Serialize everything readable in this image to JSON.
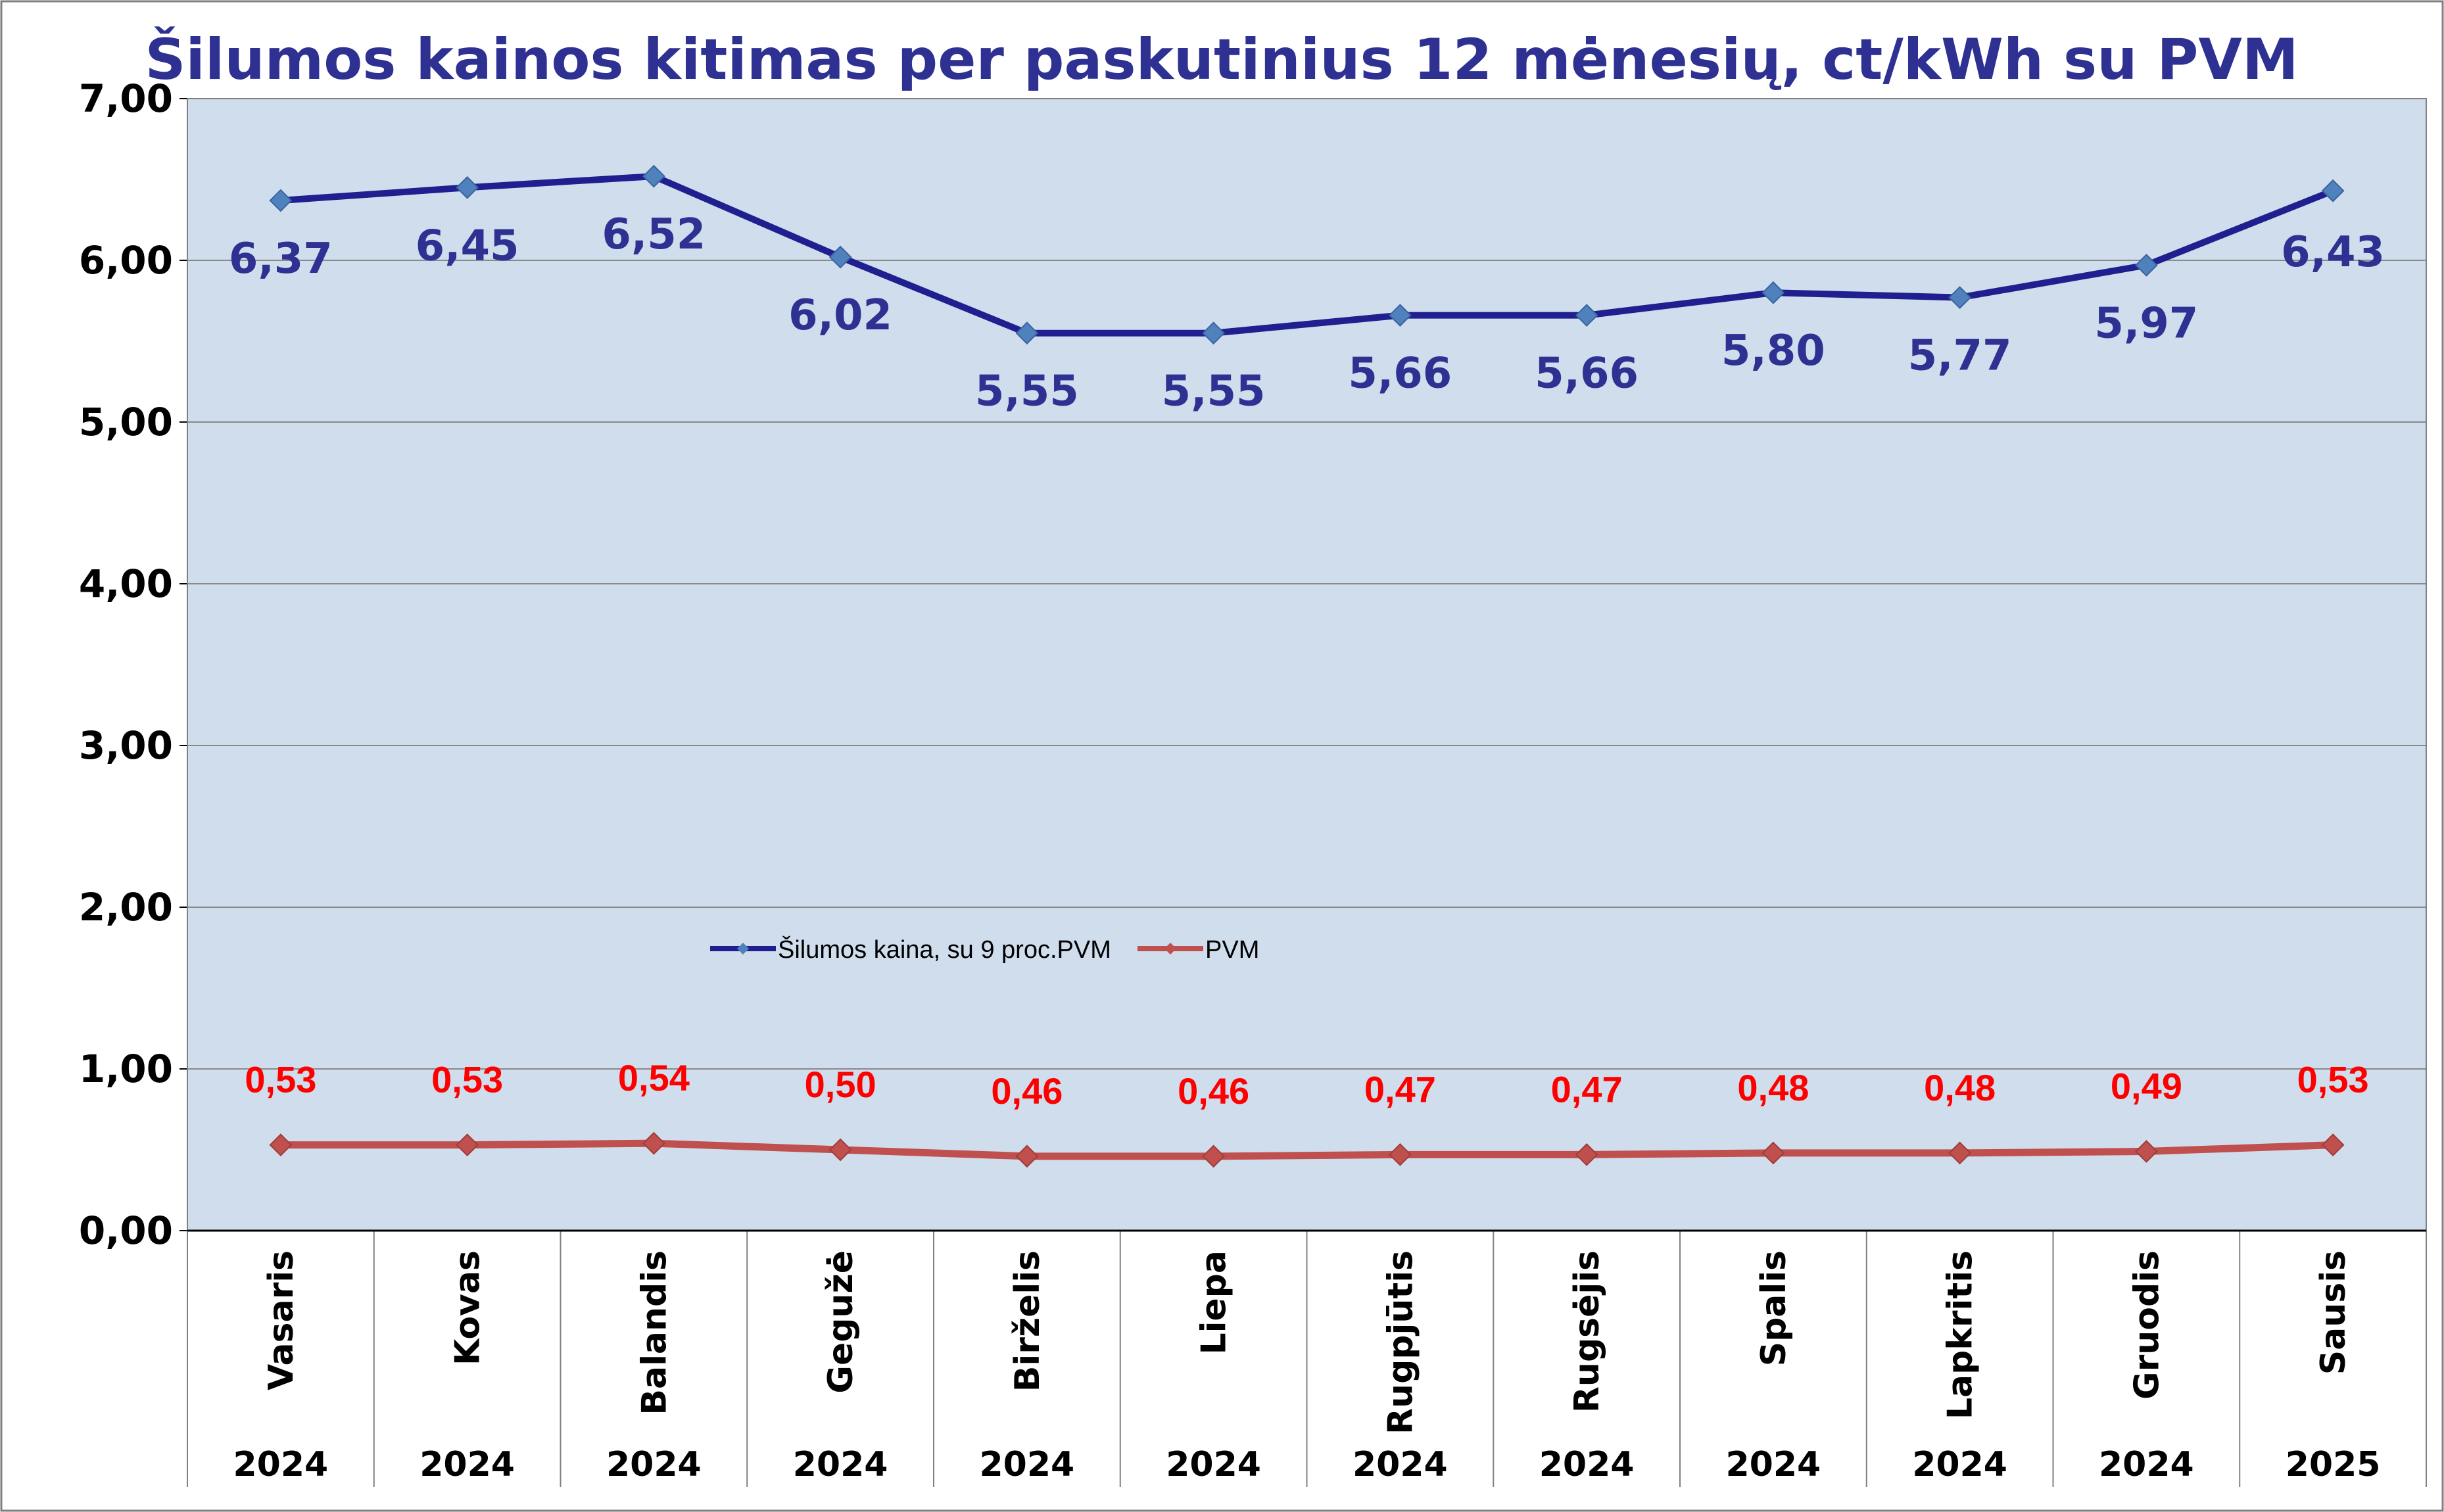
{
  "chart_data": {
    "type": "line",
    "title": "Šilumos kainos kitimas per paskutinius 12 mėnesių, ct/kWh su PVM",
    "categories": [
      "Vasaris",
      "Kovas",
      "Balandis",
      "Gegužė",
      "Birželis",
      "Liepa",
      "Rugpjūtis",
      "Rugsėjis",
      "Spalis",
      "Lapkritis",
      "Gruodis",
      "Sausis"
    ],
    "years": [
      "2024",
      "2024",
      "2024",
      "2024",
      "2024",
      "2024",
      "2024",
      "2024",
      "2024",
      "2024",
      "2024",
      "2025"
    ],
    "series": [
      {
        "name": "Šilumos kaina, su 9 proc.PVM",
        "values": [
          6.37,
          6.45,
          6.52,
          6.02,
          5.55,
          5.55,
          5.66,
          5.66,
          5.8,
          5.77,
          5.97,
          6.43
        ],
        "labels": [
          "6,37",
          "6,45",
          "6,52",
          "6,02",
          "5,55",
          "5,55",
          "5,66",
          "5,66",
          "5,80",
          "5,77",
          "5,97",
          "6,43"
        ],
        "color": "#1f1f8f",
        "marker_color": "#4f81bd"
      },
      {
        "name": "PVM",
        "values": [
          0.53,
          0.53,
          0.54,
          0.5,
          0.46,
          0.46,
          0.47,
          0.47,
          0.48,
          0.48,
          0.49,
          0.53
        ],
        "labels": [
          "0,53",
          "0,53",
          "0,54",
          "0,50",
          "0,46",
          "0,46",
          "0,47",
          "0,47",
          "0,48",
          "0,48",
          "0,49",
          "0,53"
        ],
        "color": "#c0504d",
        "marker_color": "#c0504d"
      }
    ],
    "ylim": [
      0,
      7
    ],
    "yticks": [
      "0,00",
      "1,00",
      "2,00",
      "3,00",
      "4,00",
      "5,00",
      "6,00",
      "7,00"
    ],
    "grid": true,
    "legend": "center-left",
    "plot_background": "#d0dded",
    "title_color": "#2e3192"
  }
}
